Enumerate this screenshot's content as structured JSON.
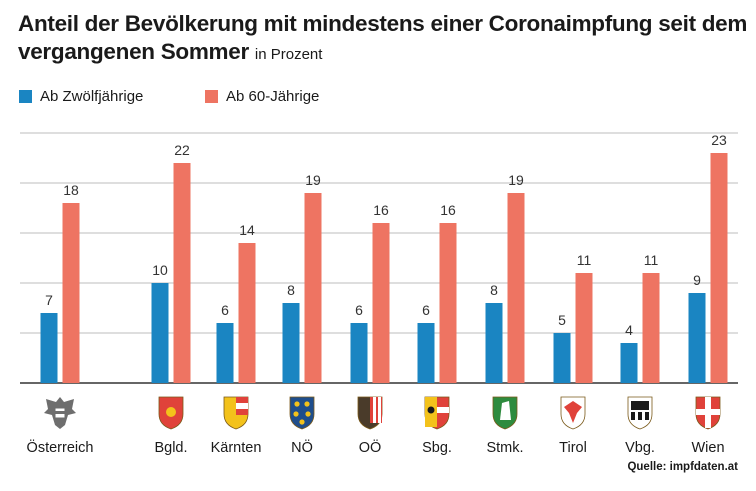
{
  "title": "Anteil der Bevölkerung mit mindestens einer Coronaimpfung seit dem vergangenen Sommer",
  "subtitle": "in Prozent",
  "source": "Quelle: impfdaten.at",
  "colors": {
    "series1": "#1a85c2",
    "series2": "#ee7462",
    "grid": "#bdbdbd",
    "axis": "#333333",
    "label": "#333333"
  },
  "chart_data": {
    "type": "bar",
    "title": "Anteil der Bevölkerung mit mindestens einer Coronaimpfung seit dem vergangenen Sommer",
    "subtitle": "in Prozent",
    "xlabel": "",
    "ylabel": "",
    "ylim": [
      0,
      25
    ],
    "grid": true,
    "legend_position": "top-left",
    "categories": [
      "Österreich",
      "Bgld.",
      "Kärnten",
      "NÖ",
      "OÖ",
      "Sbg.",
      "Stmk.",
      "Tirol",
      "Vbg.",
      "Wien"
    ],
    "series": [
      {
        "name": "Ab Zwölfjährige",
        "values": [
          7,
          10,
          6,
          8,
          6,
          6,
          8,
          5,
          4,
          9
        ]
      },
      {
        "name": "Ab 60-Jährige",
        "values": [
          18,
          22,
          14,
          19,
          16,
          16,
          19,
          11,
          11,
          23
        ]
      }
    ]
  },
  "crests": [
    "austria-eagle-crest-icon",
    "burgenland-crest-icon",
    "kaernten-crest-icon",
    "niederoesterreich-crest-icon",
    "oberoesterreich-crest-icon",
    "salzburg-crest-icon",
    "steiermark-crest-icon",
    "tirol-crest-icon",
    "vorarlberg-crest-icon",
    "wien-crest-icon"
  ]
}
